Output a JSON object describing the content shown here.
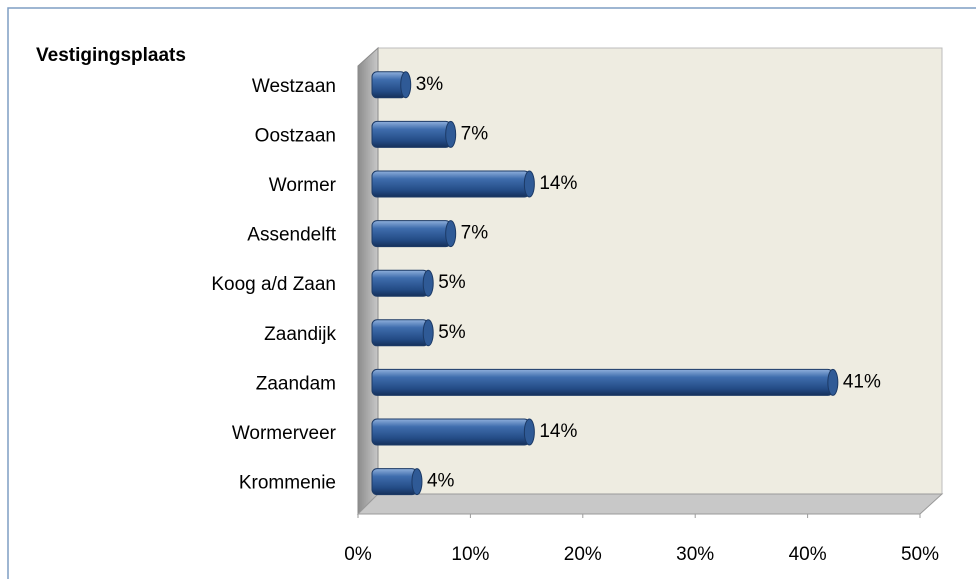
{
  "chart_data": {
    "type": "bar",
    "orientation": "horizontal",
    "three_d": true,
    "title": "Vestigingsplaats",
    "categories": [
      "Westzaan",
      "Oostzaan",
      "Wormer",
      "Assendelft",
      "Koog a/d Zaan",
      "Zaandijk",
      "Zaandam",
      "Wormerveer",
      "Krommenie"
    ],
    "values": [
      3,
      7,
      14,
      7,
      5,
      5,
      41,
      14,
      4
    ],
    "value_labels": [
      "3%",
      "7%",
      "14%",
      "7%",
      "5%",
      "5%",
      "41%",
      "14%",
      "4%"
    ],
    "color": "#2f5a96",
    "xlim": [
      0,
      50
    ],
    "xticks": [
      {
        "value": 0,
        "label": "0%"
      },
      {
        "value": 10,
        "label": "10%"
      },
      {
        "value": 20,
        "label": "20%"
      },
      {
        "value": 30,
        "label": "30%"
      },
      {
        "value": 40,
        "label": "40%"
      },
      {
        "value": 50,
        "label": "50%"
      }
    ],
    "grid": false
  }
}
